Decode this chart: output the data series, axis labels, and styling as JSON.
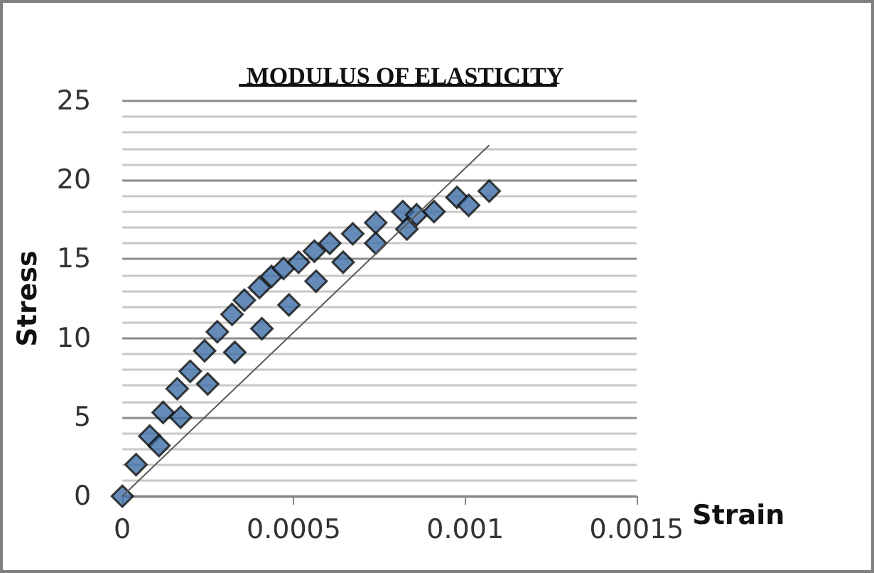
{
  "chart_data": {
    "type": "scatter",
    "title": "MODULUS OF ELASTICITY",
    "xlabel": "Strain",
    "ylabel": "Stress",
    "xlim": [
      0,
      0.0015
    ],
    "xticks": [
      0,
      0.0005,
      0.001,
      0.0015
    ],
    "ylim": [
      0,
      25
    ],
    "yticks": [
      0,
      5,
      10,
      15,
      20,
      25
    ],
    "grid": "y",
    "marker": "diamond",
    "series": [
      {
        "color": "#3f6fa6",
        "x": [
          0,
          4e-05,
          8e-05,
          0.000119,
          0.00016,
          0.000198,
          0.00024,
          0.000277,
          0.00032,
          0.000356,
          0.0004,
          0.000435,
          0.00047,
          0.000514,
          0.00056,
          0.000605,
          0.000672,
          0.000739,
          0.000818,
          0.000858,
          0.000909,
          0.000976,
          0.00101,
          0.00107,
          0.000107,
          0.00017,
          0.000249,
          0.000328,
          0.000407,
          0.000486,
          0.000565,
          0.000644,
          0.000739,
          0.00083
        ],
        "values": [
          0,
          2.0,
          3.8,
          5.3,
          6.8,
          7.9,
          9.2,
          10.4,
          11.5,
          12.4,
          13.2,
          13.9,
          14.4,
          14.8,
          15.5,
          16.0,
          16.6,
          17.3,
          18.0,
          17.8,
          18.0,
          18.9,
          18.4,
          19.3,
          3.2,
          5.0,
          7.1,
          9.1,
          10.6,
          12.1,
          13.6,
          14.8,
          16.0,
          16.9
        ]
      },
      {
        "type": "line",
        "color": "#595959",
        "marker": "none",
        "x": [
          0,
          0.00107
        ],
        "values": [
          0,
          22.2
        ]
      }
    ]
  }
}
